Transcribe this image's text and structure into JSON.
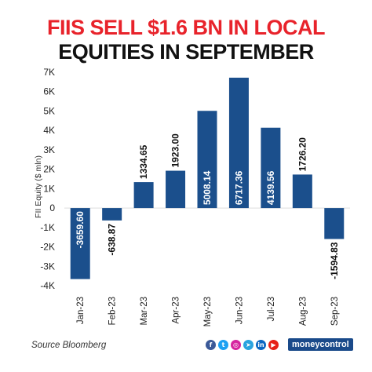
{
  "title": {
    "line1": "FIIS SELL $1.6 BN IN LOCAL",
    "line2": "EQUITIES IN SEPTEMBER"
  },
  "chart_data": {
    "type": "bar",
    "ylabel": "FII Equity ($ mln)",
    "xlabel": "",
    "ylim": [
      -4000,
      7000
    ],
    "yticks": [
      -4000,
      -3000,
      -2000,
      -1000,
      0,
      1000,
      2000,
      3000,
      4000,
      5000,
      6000,
      7000
    ],
    "ytick_labels": [
      "-4K",
      "-3K",
      "-2K",
      "-1K",
      "0",
      "1K",
      "2K",
      "3K",
      "4K",
      "5K",
      "6K",
      "7K"
    ],
    "categories": [
      "Jan-23",
      "Feb-23",
      "Mar-23",
      "Apr-23",
      "May-23",
      "Jun-23",
      "Jul-23",
      "Aug-23",
      "Sep-23"
    ],
    "values": [
      -3659.6,
      -638.87,
      1334.65,
      1923.0,
      5008.14,
      6717.36,
      4139.56,
      1726.2,
      -1594.83
    ],
    "data_labels": [
      "-3659.60",
      "-638.87",
      "1334.65",
      "1923.00",
      "5008.14",
      "6717.36",
      "4139.56",
      "1726.20",
      "-1594.83"
    ],
    "bar_color": "#1b4f8c",
    "grid": false
  },
  "footer": {
    "source": "Source Bloomberg",
    "brand": "moneycontrol",
    "social_icons": [
      {
        "name": "facebook-icon",
        "glyph": "f",
        "color": "#3b5998"
      },
      {
        "name": "twitter-icon",
        "glyph": "t",
        "color": "#1da1f2"
      },
      {
        "name": "instagram-icon",
        "glyph": "◎",
        "color": "#d6249f"
      },
      {
        "name": "telegram-icon",
        "glyph": "➤",
        "color": "#2aa3df"
      },
      {
        "name": "linkedin-icon",
        "glyph": "in",
        "color": "#0a66c2"
      },
      {
        "name": "youtube-icon",
        "glyph": "▶",
        "color": "#e62117"
      }
    ]
  }
}
